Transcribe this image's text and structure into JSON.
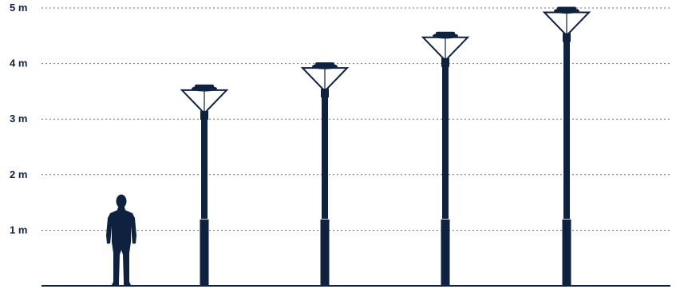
{
  "diagram": {
    "unit": "m",
    "y_axis": {
      "ticks": [
        {
          "value": 1,
          "label": "1 m"
        },
        {
          "value": 2,
          "label": "2 m"
        },
        {
          "value": 3,
          "label": "3 m"
        },
        {
          "value": 4,
          "label": "4 m"
        },
        {
          "value": 5,
          "label": "5 m"
        }
      ]
    },
    "person_height_m": 1.65,
    "poles": [
      {
        "name": "pole-1",
        "height_m": 3.55
      },
      {
        "name": "pole-2",
        "height_m": 3.95
      },
      {
        "name": "pole-3",
        "height_m": 4.5
      },
      {
        "name": "pole-4",
        "height_m": 4.95
      }
    ],
    "colors": {
      "ink": "#0e2240",
      "grid": "#6b7684",
      "background": "#ffffff"
    }
  }
}
